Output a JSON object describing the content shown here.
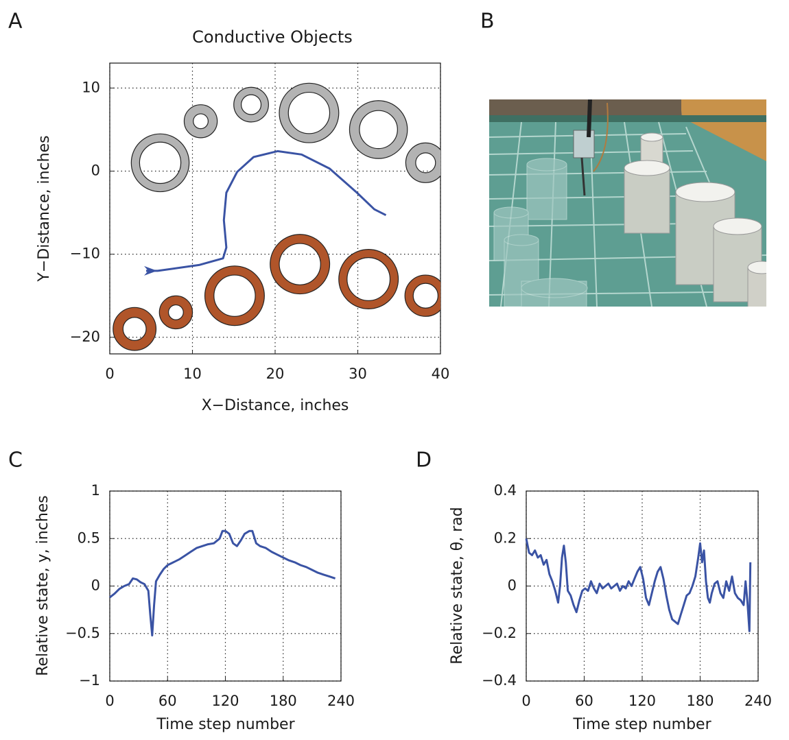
{
  "panel_labels": [
    "A",
    "B",
    "C",
    "D"
  ],
  "chart_data": [
    {
      "type": "line",
      "title": "Conductive Objects",
      "xlabel": "X−Distance, inches",
      "ylabel": "Y−Distance, inches",
      "xlim": [
        0,
        40
      ],
      "xticks": [
        0,
        10,
        20,
        30,
        40
      ],
      "ylim": [
        -22,
        13
      ],
      "yticks": [
        {
          "value": -20,
          "label": "−20"
        },
        {
          "value": -10,
          "label": "−10"
        },
        0,
        10
      ],
      "grid": true,
      "objects": [
        {
          "color": "#b3b3b3",
          "x": [
            6.1,
            11,
            17.1,
            24.1,
            32.5,
            38.2
          ],
          "y": [
            1,
            6,
            8,
            7,
            5,
            1
          ],
          "outer_r": [
            3.5,
            2,
            2.1,
            3.6,
            3.5,
            2.4
          ],
          "inner_r": [
            2.5,
            0.9,
            1.2,
            2.5,
            2.3,
            1.2
          ]
        },
        {
          "color": "#b0552a",
          "x": [
            3,
            8,
            15.1,
            23,
            31.3,
            38.2
          ],
          "y": [
            -19,
            -17,
            -15,
            -11.2,
            -13,
            -15
          ],
          "outer_r": [
            2.6,
            2,
            3.6,
            3.6,
            3.6,
            2.5
          ],
          "inner_r": [
            1.4,
            0.9,
            2.5,
            2.5,
            2.6,
            1.5
          ]
        }
      ],
      "series": [
        {
          "color": "#3a53a4",
          "x": [
            4.4,
            5.8,
            10.8,
            13.7,
            14.1,
            13.8,
            14.1,
            15.4,
            17.4,
            20.3,
            23.2,
            26.6,
            29.9,
            32,
            33.4
          ],
          "values": [
            -12,
            -12,
            -11.3,
            -10.5,
            -9.2,
            -5.9,
            -2.6,
            -0.1,
            1.7,
            2.4,
            2.0,
            0.3,
            -2.6,
            -4.6,
            -5.3
          ]
        }
      ]
    },
    {
      "type": "line",
      "xlabel": "Time step number",
      "ylabel": "Relative state, y, inches",
      "xlim": [
        0,
        240
      ],
      "xticks": [
        0,
        60,
        120,
        180,
        240
      ],
      "ylim": [
        -1,
        1
      ],
      "yticks": [
        {
          "value": -1,
          "label": "−1"
        },
        {
          "value": -0.5,
          "label": "−0.5"
        },
        0,
        0.5,
        1
      ],
      "grid": true,
      "series": [
        {
          "color": "#3a53a4",
          "x": [
            0,
            5,
            10,
            15,
            20,
            24,
            28,
            32,
            36,
            40,
            42,
            44,
            46,
            48,
            52,
            56,
            60,
            66,
            72,
            78,
            84,
            90,
            96,
            102,
            108,
            114,
            117,
            120,
            124,
            128,
            132,
            136,
            140,
            145,
            148,
            152,
            156,
            162,
            168,
            174,
            180,
            186,
            192,
            198,
            204,
            210,
            216,
            222,
            228,
            234
          ],
          "values": [
            -0.12,
            -0.08,
            -0.03,
            0.0,
            0.02,
            0.08,
            0.07,
            0.04,
            0.02,
            -0.05,
            -0.3,
            -0.52,
            -0.2,
            0.05,
            0.12,
            0.18,
            0.22,
            0.25,
            0.28,
            0.32,
            0.36,
            0.4,
            0.42,
            0.44,
            0.45,
            0.5,
            0.58,
            0.58,
            0.55,
            0.45,
            0.42,
            0.48,
            0.55,
            0.58,
            0.58,
            0.45,
            0.42,
            0.4,
            0.36,
            0.33,
            0.3,
            0.27,
            0.25,
            0.22,
            0.2,
            0.17,
            0.14,
            0.12,
            0.1,
            0.08
          ]
        }
      ]
    },
    {
      "type": "line",
      "xlabel": "Time step number",
      "ylabel": "Relative state, θ, rad",
      "xlim": [
        0,
        240
      ],
      "xticks": [
        0,
        60,
        120,
        180,
        240
      ],
      "ylim": [
        -0.4,
        0.4
      ],
      "yticks": [
        {
          "value": -0.4,
          "label": "−0.4"
        },
        {
          "value": -0.2,
          "label": "−0.2"
        },
        0,
        0.2,
        0.4
      ],
      "grid": true,
      "series": [
        {
          "color": "#3a53a4",
          "x": [
            0,
            3,
            6,
            9,
            12,
            15,
            18,
            21,
            24,
            27,
            30,
            33,
            35,
            37,
            39,
            41,
            43,
            46,
            49,
            52,
            55,
            58,
            61,
            64,
            67,
            70,
            73,
            76,
            79,
            82,
            85,
            88,
            91,
            94,
            97,
            100,
            103,
            106,
            109,
            112,
            115,
            118,
            121,
            124,
            127,
            130,
            133,
            136,
            139,
            142,
            145,
            148,
            151,
            154,
            157,
            160,
            163,
            166,
            169,
            172,
            175,
            178,
            180,
            182,
            184,
            186,
            188,
            190,
            192,
            195,
            198,
            201,
            204,
            207,
            210,
            213,
            216,
            219,
            222,
            225,
            227,
            229,
            231,
            232
          ],
          "values": [
            0.2,
            0.14,
            0.13,
            0.15,
            0.12,
            0.13,
            0.09,
            0.11,
            0.05,
            0.02,
            -0.02,
            -0.07,
            0.0,
            0.12,
            0.17,
            0.1,
            -0.02,
            -0.04,
            -0.08,
            -0.11,
            -0.06,
            -0.02,
            -0.01,
            -0.02,
            0.02,
            -0.01,
            -0.03,
            0.01,
            -0.01,
            0.0,
            0.01,
            -0.01,
            0.0,
            0.01,
            -0.02,
            0.0,
            -0.01,
            0.02,
            0.0,
            0.03,
            0.06,
            0.08,
            0.03,
            -0.05,
            -0.08,
            -0.03,
            0.02,
            0.06,
            0.08,
            0.03,
            -0.04,
            -0.1,
            -0.14,
            -0.15,
            -0.16,
            -0.12,
            -0.08,
            -0.04,
            -0.03,
            0.0,
            0.04,
            0.12,
            0.18,
            0.1,
            0.15,
            0.02,
            -0.05,
            -0.07,
            -0.03,
            0.01,
            0.02,
            -0.03,
            -0.05,
            0.02,
            -0.02,
            0.04,
            -0.03,
            -0.05,
            -0.06,
            -0.08,
            0.02,
            -0.07,
            -0.19,
            0.1
          ]
        }
      ]
    }
  ]
}
